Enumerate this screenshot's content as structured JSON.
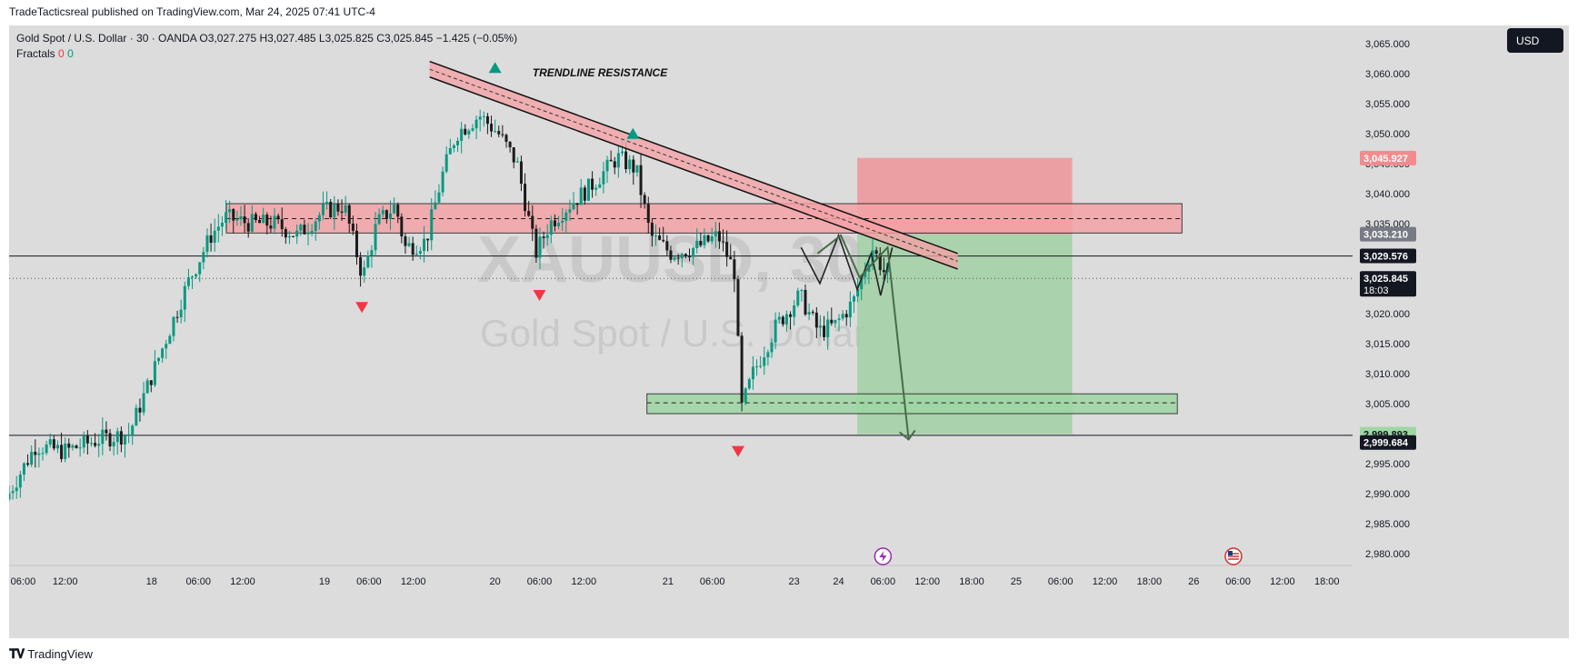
{
  "header": {
    "published": "TradeTacticsreal published on TradingView.com, Mar 24, 2025 07:41 UTC-4"
  },
  "legend": {
    "symbol": "Gold Spot / U.S. Dollar · 30 · OANDA",
    "open": "O3,027.275",
    "high": "H3,027.485",
    "low": "L3,025.825",
    "close": "C3,025.845",
    "change": "−1.425 (−0.05%)",
    "indicator": "Fractals",
    "indicator_v1": "0",
    "indicator_v2": "0"
  },
  "currency_button": "USD",
  "brand": "TradingView",
  "watermark": {
    "ticker": "XAUUSD, 30",
    "name": "Gold Spot / U.S. Dollar"
  },
  "colors": {
    "up": "#089981",
    "down": "#1b1b1b",
    "fractal_down": "#f23645",
    "fractal_up": "#089981",
    "zone_red": "#f4a3a6",
    "zone_green": "#9fd6a4",
    "stop": "#f28b8f",
    "target": "#99cf9c"
  },
  "chart_data": {
    "type": "candlestick",
    "symbol": "XAUUSD",
    "timeframe": "30",
    "ylim": [
      2978,
      3068
    ],
    "y_ticks": [
      2980,
      2985,
      2990,
      2995,
      3000,
      3005,
      3010,
      3015,
      3020,
      3025,
      3030,
      3035,
      3040,
      3045,
      3050,
      3055,
      3060,
      3065
    ],
    "y_tick_labels": [
      "2,980.000",
      "2,985.000",
      "2,990.000",
      "2,995.000",
      "3,000.000",
      "3,005.000",
      "3,010.000",
      "3,015.000",
      "3,020.000",
      "3,025.000",
      "3,030.000",
      "3,035.000",
      "3,040.000",
      "3,045.000",
      "3,050.000",
      "3,055.000",
      "3,060.000",
      "3,065.000"
    ],
    "x_ticks": [
      {
        "label": "06:00",
        "pos": 0.6
      },
      {
        "label": "12:00",
        "pos": 2.4
      },
      {
        "label": "18",
        "pos": 6.1
      },
      {
        "label": "06:00",
        "pos": 8.1
      },
      {
        "label": "12:00",
        "pos": 10
      },
      {
        "label": "19",
        "pos": 13.5
      },
      {
        "label": "06:00",
        "pos": 15.4
      },
      {
        "label": "12:00",
        "pos": 17.3
      },
      {
        "label": "20",
        "pos": 20.8
      },
      {
        "label": "06:00",
        "pos": 22.7
      },
      {
        "label": "12:00",
        "pos": 24.6
      },
      {
        "label": "21",
        "pos": 28.2
      },
      {
        "label": "06:00",
        "pos": 30.1
      },
      {
        "label": "23",
        "pos": 33.6
      },
      {
        "label": "24",
        "pos": 35.5
      },
      {
        "label": "06:00",
        "pos": 37.4
      },
      {
        "label": "12:00",
        "pos": 39.3
      },
      {
        "label": "18:00",
        "pos": 41.2
      },
      {
        "label": "25",
        "pos": 43.1
      },
      {
        "label": "06:00",
        "pos": 45
      },
      {
        "label": "12:00",
        "pos": 46.9
      },
      {
        "label": "18:00",
        "pos": 48.8
      },
      {
        "label": "26",
        "pos": 50.7
      },
      {
        "label": "06:00",
        "pos": 52.6
      },
      {
        "label": "12:00",
        "pos": 54.5
      },
      {
        "label": "18:00",
        "pos": 56.4
      }
    ],
    "x_range": [
      0,
      57.5
    ],
    "key_points": [
      [
        0,
        2989
      ],
      [
        1.3,
        2998
      ],
      [
        2.5,
        2997
      ],
      [
        4,
        2999
      ],
      [
        5.3,
        3000
      ],
      [
        6.6,
        3013
      ],
      [
        7.8,
        3025
      ],
      [
        8.8,
        3033
      ],
      [
        9.4,
        3036
      ],
      [
        10.5,
        3035
      ],
      [
        11.5,
        3035
      ],
      [
        12.5,
        3033
      ],
      [
        13.6,
        3037
      ],
      [
        14.5,
        3038
      ],
      [
        15.3,
        3026
      ],
      [
        15.9,
        3035
      ],
      [
        16.7,
        3038
      ],
      [
        17.1,
        3031
      ],
      [
        18,
        3032
      ],
      [
        18.7,
        3043
      ],
      [
        19.3,
        3050
      ],
      [
        20.3,
        3053
      ],
      [
        21.1,
        3050
      ],
      [
        21.9,
        3045
      ],
      [
        22.7,
        3030
      ],
      [
        23.3,
        3035
      ],
      [
        24.1,
        3038
      ],
      [
        25,
        3041
      ],
      [
        26.2,
        3046
      ],
      [
        27,
        3044
      ],
      [
        27.6,
        3033
      ],
      [
        28.5,
        3030
      ],
      [
        29.6,
        3031
      ],
      [
        30.5,
        3033
      ],
      [
        31.2,
        3027
      ],
      [
        31.5,
        3004
      ],
      [
        32,
        3010
      ],
      [
        33,
        3018
      ],
      [
        34,
        3023
      ],
      [
        34.8,
        3017
      ],
      [
        35.5,
        3018
      ],
      [
        36.3,
        3022
      ],
      [
        37.1,
        3031
      ],
      [
        37.6,
        3027
      ]
    ],
    "price_labels": [
      {
        "text": "3,045.927",
        "price": 3045.9,
        "bg": "#f28b8f",
        "fg": "#ffffff"
      },
      {
        "text": "3,033.210",
        "price": 3033.2,
        "bg": "#787b86",
        "fg": "#ffffff"
      },
      {
        "text": "3,029.576",
        "price": 3029.6,
        "bg": "#131722",
        "fg": "#ffffff"
      },
      {
        "text": "3,025.845",
        "price": 3025.85,
        "bg": "#131722",
        "fg": "#ffffff",
        "sub": "18:03"
      },
      {
        "text": "2,999.893",
        "price": 2999.9,
        "bg": "#9fd6a4",
        "fg": "#131722"
      },
      {
        "text": "2,999.684",
        "price": 2998.5,
        "bg": "#131722",
        "fg": "#ffffff"
      }
    ],
    "horizontal_lines": [
      3029.576,
      2999.684
    ],
    "current_price": 3025.845,
    "resistance_zone": {
      "x0": 9.3,
      "x1": 50.2,
      "top": 3038.3,
      "bottom": 3033.4,
      "mid": 3035.8
    },
    "support_zone": {
      "x0": 27.3,
      "x1": 50.0,
      "top": 3006.6,
      "bottom": 3003.3,
      "mid": 3005.1
    },
    "trendline": {
      "x0": 18.0,
      "y0": 3062,
      "x1": 40.6,
      "y1": 3030,
      "label": "TRENDLINE RESISTANCE"
    },
    "position": {
      "x0": 36.3,
      "x1": 45.5,
      "stop": 3045.927,
      "entry": 3033.2,
      "target": 2999.893
    },
    "projection": [
      [
        34.6,
        3030
      ],
      [
        35.6,
        3033
      ],
      [
        36.4,
        3026
      ],
      [
        37.6,
        3031
      ],
      [
        38.5,
        2999
      ]
    ],
    "w_pattern": [
      [
        33.9,
        3031
      ],
      [
        34.7,
        3025
      ],
      [
        35.5,
        3033
      ],
      [
        36.3,
        3024
      ],
      [
        36.9,
        3030
      ],
      [
        37.3,
        3023
      ],
      [
        37.8,
        3031
      ]
    ],
    "fractals_down": [
      [
        15.1,
        3021
      ],
      [
        22.7,
        3023
      ],
      [
        31.2,
        2997
      ]
    ],
    "fractals_up": [
      [
        20.8,
        3061
      ],
      [
        26.7,
        3050
      ]
    ],
    "events": [
      {
        "icon": "lightning-icon",
        "pos": 37.4
      },
      {
        "icon": "us-flag-icon",
        "pos": 52.4
      }
    ]
  }
}
